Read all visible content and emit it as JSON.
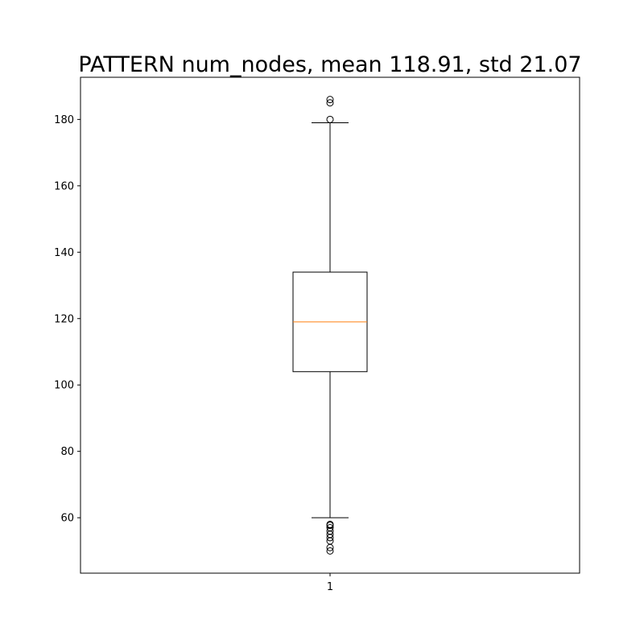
{
  "chart_data": {
    "type": "box",
    "title": "PATTERN num_nodes, mean 118.91, std 21.07",
    "xlabel": "",
    "ylabel": "",
    "categories": [
      "1"
    ],
    "ylim": [
      43.3,
      192.7
    ],
    "yticks": [
      60,
      80,
      100,
      120,
      140,
      160,
      180
    ],
    "grid": false,
    "legend": "none",
    "boxes": [
      {
        "category": "1",
        "whisker_low": 60,
        "q1": 104,
        "median": 119,
        "q3": 134,
        "whisker_high": 179,
        "outliers": [
          50,
          51,
          53,
          54,
          55,
          56,
          57,
          57.7,
          58,
          180,
          185,
          186
        ]
      }
    ],
    "colors": {
      "box": "#000000",
      "median": "#ff7f0e",
      "whisker": "#000000",
      "outlier": "#000000"
    }
  }
}
